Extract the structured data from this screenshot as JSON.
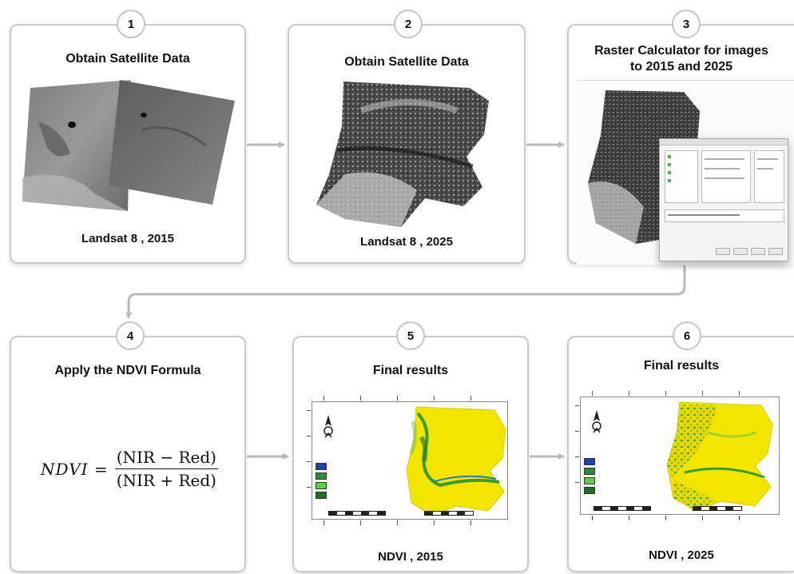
{
  "steps": [
    {
      "number": "1",
      "title": "Obtain Satellite Data",
      "footer": "Landsat 8 , 2015"
    },
    {
      "number": "2",
      "title": "Obtain Satellite Data",
      "footer": "Landsat 8 , 2025"
    },
    {
      "number": "3",
      "title_line1": "Raster Calculator for images",
      "title_line2": "to 2015 and 2025"
    },
    {
      "number": "4",
      "title": "Apply the NDVI Formula",
      "formula": {
        "lhs": "NDVI =",
        "numerator": "(NIR − Red)",
        "denominator": "(NIR + Red)"
      }
    },
    {
      "number": "5",
      "title": "Final results",
      "footer": "NDVI , 2015"
    },
    {
      "number": "6",
      "title": "Final results",
      "footer": "NDVI , 2025"
    }
  ],
  "colors": {
    "card_border": "#c9c9c9",
    "connector": "#b9b9b9",
    "ndvi_yellow": "#f2e600",
    "ndvi_green": "#3b9b2f",
    "legend_blue": "#1d3fb0"
  },
  "icons": [
    "north-arrow-icon",
    "arrow-right-icon"
  ]
}
